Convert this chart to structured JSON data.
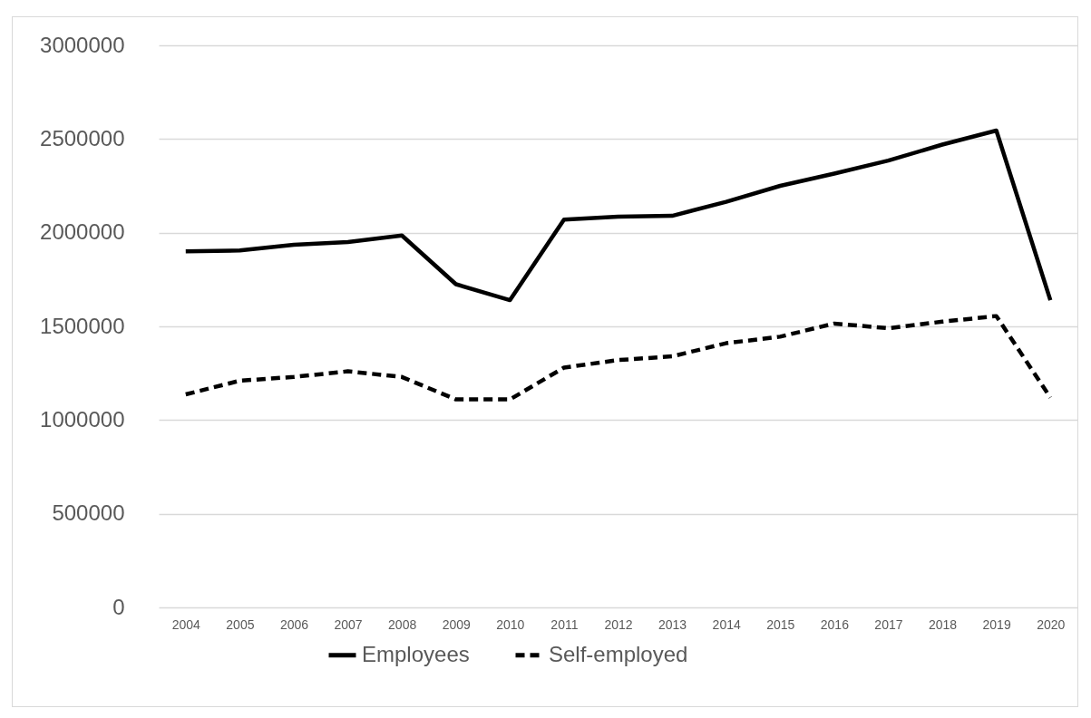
{
  "chart_data": {
    "type": "line",
    "categories": [
      "2004",
      "2005",
      "2006",
      "2007",
      "2008",
      "2009",
      "2010",
      "2011",
      "2012",
      "2013",
      "2014",
      "2015",
      "2016",
      "2017",
      "2018",
      "2019",
      "2020"
    ],
    "series": [
      {
        "name": "Employees",
        "color": "#000000",
        "line_style": "solid",
        "values": [
          1900000,
          1905000,
          1935000,
          1950000,
          1985000,
          1725000,
          1640000,
          2070000,
          2085000,
          2090000,
          2165000,
          2250000,
          2315000,
          2385000,
          2470000,
          2545000,
          1640000
        ]
      },
      {
        "name": "Self-employed",
        "color": "#000000",
        "line_style": "dashed",
        "values": [
          1137000,
          1210000,
          1230000,
          1260000,
          1230000,
          1110000,
          1110000,
          1280000,
          1320000,
          1340000,
          1410000,
          1445000,
          1515000,
          1490000,
          1525000,
          1555000,
          1120000
        ]
      }
    ],
    "ylim": [
      0,
      3000000
    ],
    "yticks": [
      0,
      500000,
      1000000,
      1500000,
      2000000,
      2500000,
      3000000
    ],
    "grid": "y",
    "legend": "bottom",
    "marker": "none"
  }
}
